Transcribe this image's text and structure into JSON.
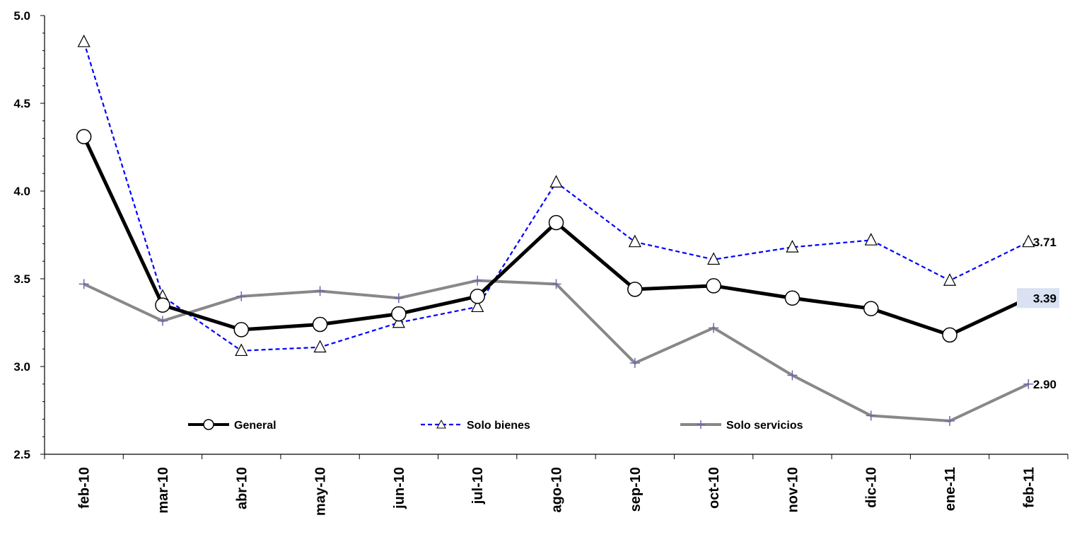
{
  "chart_data": {
    "type": "line",
    "categories": [
      "feb-10",
      "mar-10",
      "abr-10",
      "may-10",
      "jun-10",
      "jul-10",
      "ago-10",
      "sep-10",
      "oct-10",
      "nov-10",
      "dic-10",
      "ene-11",
      "feb-11"
    ],
    "ylim": [
      2.5,
      5.0
    ],
    "yticks": [
      "2.5",
      "3.0",
      "3.5",
      "4.0",
      "4.5",
      "5.0"
    ],
    "grid": false,
    "legend_position": "bottom-inside",
    "series": [
      {
        "name": "General",
        "color": "#000000",
        "line": "solid",
        "marker": "circle",
        "values": [
          4.31,
          3.35,
          3.21,
          3.24,
          3.3,
          3.4,
          3.82,
          3.44,
          3.46,
          3.39,
          3.33,
          3.18,
          3.39
        ],
        "end_label": "3.39",
        "end_label_highlight": "#d9e1f2"
      },
      {
        "name": "Solo bienes",
        "color": "#0000ff",
        "line": "dashed",
        "marker": "triangle",
        "values": [
          4.85,
          3.4,
          3.09,
          3.11,
          3.25,
          3.34,
          4.05,
          3.71,
          3.61,
          3.68,
          3.72,
          3.49,
          3.71
        ],
        "end_label": "3.71"
      },
      {
        "name": "Solo servicios",
        "color": "#888888",
        "line": "solid",
        "marker": "plus",
        "values": [
          3.47,
          3.26,
          3.4,
          3.43,
          3.39,
          3.49,
          3.47,
          3.02,
          3.22,
          2.95,
          2.72,
          2.69,
          2.9
        ],
        "end_label": "2.90"
      }
    ]
  }
}
